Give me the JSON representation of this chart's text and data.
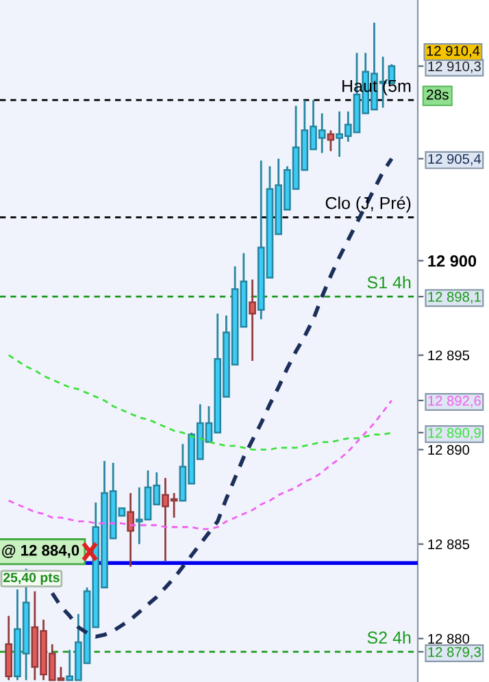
{
  "chart_data": {
    "type": "candlestick",
    "categories": [
      null,
      null,
      null,
      null,
      null,
      null,
      null,
      null,
      null,
      null,
      null,
      null,
      null,
      null,
      null,
      null,
      null,
      null,
      null,
      null,
      null,
      null,
      null,
      null,
      null,
      null,
      null,
      null,
      null,
      null,
      null,
      null,
      null,
      null,
      null,
      null,
      null,
      null,
      null,
      null,
      null,
      null,
      null,
      null,
      null
    ],
    "ohlc": [
      [
        12879.7,
        12881.2,
        12877.8,
        12878.0
      ],
      [
        12878.0,
        12882.6,
        12877.8,
        12880.5
      ],
      [
        12879.2,
        12883.7,
        12877.8,
        12881.9
      ],
      [
        12880.6,
        12882.5,
        12877.8,
        12878.5
      ],
      [
        12880.4,
        12881.0,
        12877.8,
        12878.1
      ],
      [
        12879.2,
        12879.7,
        12877.8,
        12877.8
      ],
      [
        12877.9,
        12878.5,
        12877.8,
        12877.8
      ],
      [
        12877.8,
        12879.4,
        12877.8,
        12878.0
      ],
      [
        12877.8,
        12881.3,
        12877.8,
        12879.8
      ],
      [
        12878.7,
        12882.7,
        12878.7,
        12882.5
      ],
      [
        12880.6,
        12887.2,
        12880.6,
        12885.9
      ],
      [
        12882.7,
        12889.4,
        12882.7,
        12887.7
      ],
      [
        12885.3,
        12889.3,
        12885.3,
        12887.8
      ],
      [
        12886.5,
        12886.9,
        12886.5,
        12886.9
      ],
      [
        12886.7,
        12887.7,
        12883.8,
        12885.7
      ],
      [
        12886.2,
        12888.0,
        12885.0,
        12886.3
      ],
      [
        12886.3,
        12888.9,
        12886.3,
        12888.0
      ],
      [
        12887.1,
        12888.8,
        12887.1,
        12888.1
      ],
      [
        12887.6,
        12888.5,
        12884.1,
        12887.0
      ],
      [
        12887.3,
        12887.7,
        12886.4,
        12887.3
      ],
      [
        12887.3,
        12890.3,
        12887.3,
        12889.1
      ],
      [
        12888.2,
        12890.9,
        12888.2,
        12890.8
      ],
      [
        12889.5,
        12892.4,
        12889.5,
        12891.4
      ],
      [
        12890.4,
        12892.3,
        12890.4,
        12891.4
      ],
      [
        12890.9,
        12897.2,
        12890.9,
        12894.8
      ],
      [
        12892.8,
        12897.1,
        12892.8,
        12896.2
      ],
      [
        12894.5,
        12899.7,
        12894.5,
        12898.5
      ],
      [
        12896.5,
        12900.4,
        12896.5,
        12898.9
      ],
      [
        12897.8,
        12899.0,
        12894.7,
        12897.2
      ],
      [
        12897.4,
        12905.3,
        12896.9,
        12900.7
      ],
      [
        12899.1,
        12905.0,
        12899.1,
        12903.8
      ],
      [
        12901.4,
        12905.4,
        12901.4,
        12904.0
      ],
      [
        12902.7,
        12905.0,
        12902.7,
        12904.8
      ],
      [
        12903.8,
        12908.2,
        12903.8,
        12906.0
      ],
      [
        12904.8,
        12908.5,
        12904.8,
        12906.9
      ],
      [
        12905.9,
        12908.5,
        12905.9,
        12907.1
      ],
      [
        12906.5,
        12907.8,
        12905.7,
        12906.9
      ],
      [
        12906.7,
        12906.9,
        12905.8,
        12906.4
      ],
      [
        12906.5,
        12907.9,
        12905.5,
        12906.7
      ],
      [
        12906.6,
        12907.9,
        12906.3,
        12907.2
      ],
      [
        12906.8,
        12911.0,
        12906.8,
        12908.8
      ],
      [
        12907.8,
        12911.0,
        12907.8,
        12910.0
      ],
      [
        12908.0,
        12912.6,
        12908.0,
        12909.9
      ],
      [
        12909.4,
        12910.8,
        12908.1,
        12909.4
      ],
      [
        12909.4,
        12910.4,
        12909.4,
        12910.3
      ]
    ],
    "colors": [
      "#e05a5a",
      "#3ccbf4",
      "#3ccbf4",
      "#e05a5a",
      "#e05a5a",
      "#e05a5a",
      "#e05a5a",
      "#3ccbf4",
      "#3ccbf4",
      "#3ccbf4",
      "#3ccbf4",
      "#3ccbf4",
      "#3ccbf4",
      "#3ccbf4",
      "#e05a5a",
      "#3ccbf4",
      "#3ccbf4",
      "#3ccbf4",
      "#e05a5a",
      "#e05a5a",
      "#3ccbf4",
      "#3ccbf4",
      "#3ccbf4",
      "#3ccbf4",
      "#3ccbf4",
      "#3ccbf4",
      "#3ccbf4",
      "#3ccbf4",
      "#e05a5a",
      "#3ccbf4",
      "#3ccbf4",
      "#3ccbf4",
      "#3ccbf4",
      "#3ccbf4",
      "#3ccbf4",
      "#3ccbf4",
      "#3ccbf4",
      "#e05a5a",
      "#3ccbf4",
      "#3ccbf4",
      "#3ccbf4",
      "#3ccbf4",
      "#3ccbf4",
      "#3ccbf4",
      "#3ccbf4"
    ],
    "series": [
      {
        "type": "line",
        "color": "#1c2f5a",
        "line_style": "dashed",
        "values": [
          null,
          null,
          null,
          null,
          null,
          12882.4,
          12881.7,
          12881.2,
          12880.6,
          12880.3,
          12880.1,
          12880.2,
          12880.4,
          12880.7,
          12881.0,
          12881.4,
          12881.8,
          12882.2,
          12882.7,
          12883.2,
          12883.8,
          12884.4,
          12885.0,
          12885.6,
          12886.2,
          12887.4,
          12888.5,
          12889.6,
          12890.5,
          12891.4,
          12892.4,
          12893.3,
          12894.3,
          12895.2,
          12896.0,
          12896.9,
          12898.1,
          12899.2,
          12900.2,
          12901.1,
          12902.0,
          12902.9,
          12903.8,
          12904.7,
          12905.4
        ]
      },
      {
        "type": "line",
        "color": "#f060f0",
        "line_style": "dashed",
        "values": [
          12887.3,
          12887.1,
          12886.9,
          12886.7,
          12886.6,
          12886.4,
          12886.4,
          12886.3,
          12886.2,
          12886.2,
          12886.1,
          12886.1,
          12886.1,
          12886.1,
          12886.0,
          12886.0,
          12886.0,
          12886.0,
          12885.9,
          12885.9,
          12885.9,
          12885.9,
          12885.8,
          12885.8,
          12885.9,
          12886.2,
          12886.4,
          12886.6,
          12886.8,
          12887.1,
          12887.3,
          12887.6,
          12887.8,
          12888.0,
          12888.3,
          12888.5,
          12888.8,
          12889.2,
          12889.5,
          12889.9,
          12890.4,
          12890.9,
          12891.4,
          12892.0,
          12892.6
        ]
      },
      {
        "type": "line",
        "color": "#3ee03e",
        "line_style": "dashed",
        "values": [
          12895.0,
          12894.7,
          12894.4,
          12894.2,
          12893.9,
          12893.7,
          12893.5,
          12893.3,
          12893.2,
          12893.0,
          12892.8,
          12892.6,
          12892.3,
          12892.1,
          12891.9,
          12891.7,
          12891.6,
          12891.4,
          12891.2,
          12891.0,
          12890.9,
          12890.7,
          12890.6,
          12890.4,
          12890.3,
          12890.2,
          12890.2,
          12890.1,
          12890.0,
          12890.0,
          12890.0,
          12890.1,
          12890.1,
          12890.1,
          12890.2,
          12890.3,
          12890.4,
          12890.4,
          12890.5,
          12890.6,
          12890.6,
          12890.7,
          12890.8,
          12890.8,
          12890.9
        ]
      }
    ],
    "ylim": [
      12877.7,
      12913.8
    ],
    "yticks": [
      12880,
      12885,
      12890,
      12895,
      {
        "value": 12900,
        "label": "12 900"
      },
      {
        "value": 12879.3,
        "label": "12 879,3"
      },
      {
        "value": 12890.9,
        "label": "12 890,9"
      },
      {
        "value": 12892.6,
        "label": "12 892,6"
      },
      {
        "value": 12898.1,
        "label": "12 898,1"
      },
      {
        "value": 12905.4,
        "label": "12 905,4"
      },
      {
        "value": 12910.3,
        "label": "12 910,3"
      }
    ],
    "ref_lines": [
      {
        "axis": "y",
        "value": 12908.5,
        "label": "Haut (5m",
        "color": "#000000",
        "line_style": "dashed"
      },
      {
        "axis": "y",
        "value": 12902.3,
        "label": "Clo (J, Pré)",
        "color": "#000000",
        "line_style": "dashed"
      },
      {
        "axis": "y",
        "value": 12898.1,
        "label": "S1 4h",
        "color": "#1a9a1a",
        "line_style": "dashed"
      },
      {
        "axis": "y",
        "value": 12879.3,
        "label": "S2 4h",
        "color": "#1a9a1a",
        "line_style": "dashed"
      },
      {
        "axis": "y",
        "value": 12884.0,
        "label": "@ 12 884,0",
        "color": "#0000ee",
        "line_style": "solid"
      }
    ],
    "annotations": [
      "25,40 pts",
      "28s",
      "12 910,4"
    ],
    "tick_labels": "y"
  }
}
